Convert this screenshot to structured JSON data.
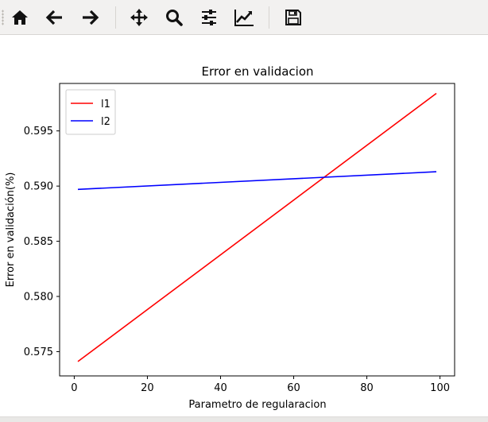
{
  "toolbar": {
    "buttons": [
      {
        "icon": "home-icon",
        "name": "home-button"
      },
      {
        "icon": "back-arrow-icon",
        "name": "back-button"
      },
      {
        "icon": "forward-arrow-icon",
        "name": "forward-button"
      },
      {
        "icon": "pan-icon",
        "name": "pan-button"
      },
      {
        "icon": "zoom-icon",
        "name": "zoom-button"
      },
      {
        "icon": "sliders-icon",
        "name": "configure-subplots-button"
      },
      {
        "icon": "edit-axes-icon",
        "name": "edit-axes-button"
      },
      {
        "icon": "save-icon",
        "name": "save-button"
      }
    ]
  },
  "chart_data": {
    "type": "line",
    "title": "Error en validacion",
    "xlabel": "Parametro de regularacion",
    "ylabel": "Error en validación(%)",
    "xlim": [
      -4,
      104
    ],
    "ylim": [
      0.5728,
      0.5993
    ],
    "xticks": [
      0,
      20,
      40,
      60,
      80,
      100
    ],
    "xtick_labels": [
      "0",
      "20",
      "40",
      "60",
      "80",
      "100"
    ],
    "yticks": [
      0.575,
      0.58,
      0.585,
      0.59,
      0.595
    ],
    "ytick_labels": [
      "0.575",
      "0.580",
      "0.585",
      "0.590",
      "0.595"
    ],
    "grid": false,
    "legend_position": "top-left",
    "series": [
      {
        "name": "l1",
        "color": "#ff0000",
        "x": [
          1,
          99
        ],
        "y": [
          0.5741,
          0.5984
        ]
      },
      {
        "name": "l2",
        "color": "#0000ff",
        "x": [
          1,
          99
        ],
        "y": [
          0.5897,
          0.5913
        ]
      }
    ]
  }
}
